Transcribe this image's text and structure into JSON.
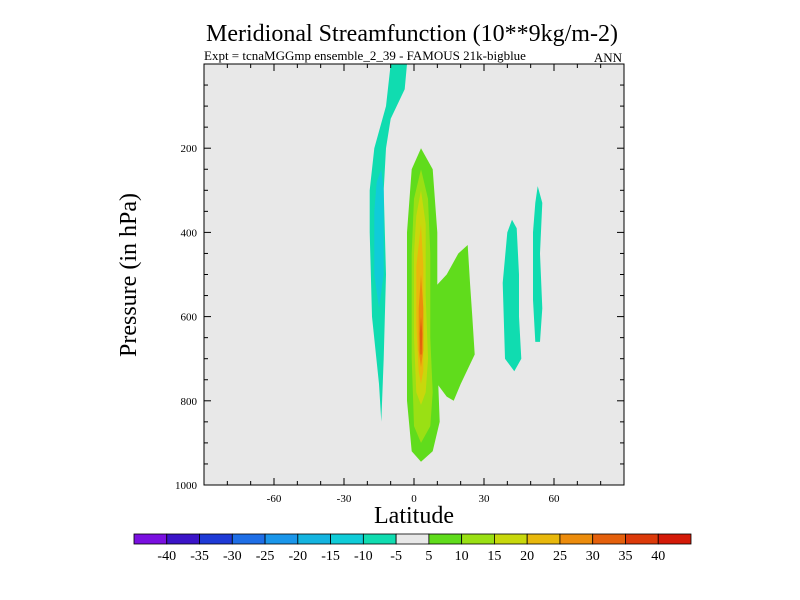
{
  "chart_data": {
    "type": "contour",
    "title": "Meridional Streamfunction (10**9kg/m-2)",
    "subtitle_left": "Expt = tcnaMGGmp ensemble_2_39 - FAMOUS 21k-bigblue",
    "subtitle_right": "ANN",
    "xlabel": "Latitude",
    "ylabel": "Pressure (in hPa)",
    "xlim": [
      -90,
      90
    ],
    "ylim": [
      1000,
      0
    ],
    "x_ticks": [
      -60,
      -30,
      0,
      30,
      60
    ],
    "x_tick_labels": [
      "-60",
      "-30",
      "0",
      "30",
      "60"
    ],
    "y_ticks": [
      200,
      400,
      600,
      800,
      1000
    ],
    "y_tick_labels": [
      "200",
      "400",
      "600",
      "800",
      "1000"
    ],
    "colorbar": {
      "labels": [
        "-40",
        "-35",
        "-30",
        "-25",
        "-20",
        "-15",
        "-10",
        "-5",
        "5",
        "10",
        "15",
        "20",
        "25",
        "30",
        "35",
        "40"
      ],
      "colors": [
        "#7a10e0",
        "#3b14c8",
        "#1e3ad6",
        "#1e6ee6",
        "#1a96ea",
        "#14b4e0",
        "#10ccd8",
        "#10dcb0",
        "#e8e8e8",
        "#60dc1c",
        "#9ae014",
        "#c8d80c",
        "#e8b80c",
        "#ec8c0c",
        "#e4600c",
        "#dc3a0a",
        "#d41a08"
      ]
    },
    "background_color": "#e8e8e8",
    "regions": [
      {
        "name": "upper-branch",
        "color": "#10dcb0",
        "points": [
          [
            -10,
            0
          ],
          [
            -3,
            0
          ],
          [
            -4,
            60
          ],
          [
            -10,
            130
          ],
          [
            -12,
            200
          ],
          [
            -13,
            300
          ],
          [
            -12,
            500
          ],
          [
            -13,
            700
          ],
          [
            -14,
            850
          ],
          [
            -15,
            760
          ],
          [
            -18,
            600
          ],
          [
            -19,
            400
          ],
          [
            -19,
            300
          ],
          [
            -17,
            200
          ],
          [
            -12,
            100
          ]
        ]
      },
      {
        "name": "inner-neg-core",
        "color": "#10ccd8",
        "points": [
          [
            -14,
            250
          ],
          [
            -13,
            300
          ],
          [
            -13,
            400
          ],
          [
            -13,
            500
          ],
          [
            -15,
            580
          ],
          [
            -17,
            500
          ],
          [
            -17,
            350
          ],
          [
            -16,
            280
          ]
        ]
      },
      {
        "name": "cell-10",
        "color": "#60dc1c",
        "points": [
          [
            3,
            200
          ],
          [
            8,
            250
          ],
          [
            10,
            400
          ],
          [
            10,
            700
          ],
          [
            11,
            850
          ],
          [
            8,
            920
          ],
          [
            3,
            945
          ],
          [
            -1,
            920
          ],
          [
            -3,
            800
          ],
          [
            -3,
            400
          ],
          [
            -1,
            250
          ]
        ]
      },
      {
        "name": "lobe-10",
        "color": "#60dc1c",
        "points": [
          [
            9,
            530
          ],
          [
            14,
            500
          ],
          [
            19,
            450
          ],
          [
            23,
            430
          ],
          [
            24,
            520
          ],
          [
            25,
            600
          ],
          [
            26,
            690
          ],
          [
            20,
            760
          ],
          [
            17,
            800
          ],
          [
            14,
            790
          ],
          [
            10,
            760
          ]
        ]
      },
      {
        "name": "cell-15",
        "color": "#9ae014",
        "points": [
          [
            3,
            250
          ],
          [
            6,
            320
          ],
          [
            7,
            450
          ],
          [
            7,
            650
          ],
          [
            8,
            780
          ],
          [
            7,
            860
          ],
          [
            3,
            900
          ],
          [
            0,
            860
          ],
          [
            -1,
            700
          ],
          [
            -1,
            450
          ],
          [
            0,
            320
          ]
        ]
      },
      {
        "name": "cell-20",
        "color": "#c8d80c",
        "points": [
          [
            3,
            300
          ],
          [
            5,
            380
          ],
          [
            5,
            550
          ],
          [
            6,
            700
          ],
          [
            5,
            780
          ],
          [
            3,
            810
          ],
          [
            1,
            780
          ],
          [
            0,
            650
          ],
          [
            0,
            450
          ],
          [
            1,
            360
          ]
        ]
      },
      {
        "name": "cell-25",
        "color": "#e8b80c",
        "points": [
          [
            3,
            380
          ],
          [
            4,
            480
          ],
          [
            4,
            620
          ],
          [
            4,
            730
          ],
          [
            3,
            760
          ],
          [
            2,
            730
          ],
          [
            1,
            620
          ],
          [
            1,
            480
          ]
        ]
      },
      {
        "name": "cell-30",
        "color": "#ec8c0c",
        "points": [
          [
            3,
            500
          ],
          [
            4,
            580
          ],
          [
            4,
            680
          ],
          [
            3,
            720
          ],
          [
            2,
            680
          ],
          [
            2,
            580
          ]
        ]
      },
      {
        "name": "cell-35",
        "color": "#e4600c",
        "points": [
          [
            3,
            600
          ],
          [
            3.5,
            640
          ],
          [
            3.3,
            690
          ],
          [
            2.7,
            690
          ],
          [
            2.5,
            640
          ]
        ]
      },
      {
        "name": "right-patch-1",
        "color": "#10dcb0",
        "points": [
          [
            42,
            370
          ],
          [
            44,
            390
          ],
          [
            45,
            500
          ],
          [
            45,
            600
          ],
          [
            46,
            700
          ],
          [
            43,
            730
          ],
          [
            39,
            700
          ],
          [
            38,
            520
          ],
          [
            40,
            400
          ]
        ]
      },
      {
        "name": "right-patch-2",
        "color": "#10dcb0",
        "points": [
          [
            53,
            290
          ],
          [
            55,
            330
          ],
          [
            54,
            450
          ],
          [
            55,
            580
          ],
          [
            54,
            660
          ],
          [
            52,
            660
          ],
          [
            51,
            560
          ],
          [
            51,
            400
          ],
          [
            52,
            330
          ]
        ]
      }
    ]
  }
}
